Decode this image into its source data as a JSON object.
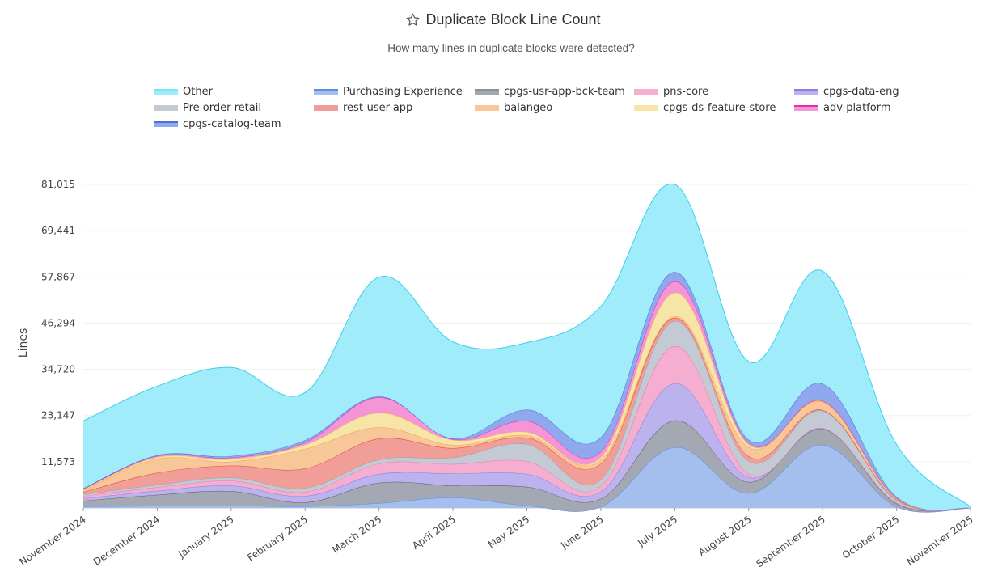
{
  "header": {
    "title": "Duplicate Block Line Count",
    "subtitle": "How many lines in duplicate blocks were detected?",
    "title_icon": "star-icon"
  },
  "chart_data": {
    "type": "area",
    "stacked": true,
    "smoothed": true,
    "title": "Duplicate Block Line Count",
    "subtitle": "How many lines in duplicate blocks were detected?",
    "xlabel": "",
    "ylabel": "Lines",
    "ylim": [
      0,
      81015
    ],
    "yticks": [
      0,
      11573,
      23147,
      34720,
      46294,
      57867,
      69441,
      81015
    ],
    "ytick_labels": [
      "",
      "11,573",
      "23,147",
      "34,720",
      "46,294",
      "57,867",
      "69,441",
      "81,015"
    ],
    "grid": true,
    "legend_position": "top",
    "categories": [
      "November 2024",
      "December 2024",
      "January 2025",
      "February 2025",
      "March 2025",
      "April 2025",
      "May 2025",
      "June 2025",
      "July 2025",
      "August 2025",
      "September 2025",
      "October 2025",
      "November 2025"
    ],
    "series": [
      {
        "name": "Purchasing Experience",
        "color": "#a4bfee",
        "line": "#5b8fe0",
        "values": [
          400,
          500,
          600,
          400,
          1200,
          2600,
          600,
          300,
          15200,
          3700,
          15800,
          300,
          0
        ]
      },
      {
        "name": "cpgs-usr-app-bck-team",
        "color": "#a3a8b3",
        "line": "#5a5f6b",
        "values": [
          1400,
          2800,
          3600,
          1000,
          5100,
          3000,
          4700,
          2000,
          6700,
          2800,
          4000,
          800,
          0
        ]
      },
      {
        "name": "cpgs-data-eng",
        "color": "#bbb2ee",
        "line": "#8a7fe0",
        "values": [
          600,
          1000,
          1400,
          1600,
          2200,
          3000,
          3200,
          1800,
          9300,
          1200,
          200,
          100,
          0
        ]
      },
      {
        "name": "pns-core",
        "color": "#f6aed0",
        "line": "#e878b0",
        "values": [
          600,
          900,
          1200,
          1000,
          2600,
          2400,
          3200,
          1400,
          9300,
          800,
          0,
          100,
          0
        ]
      },
      {
        "name": "Pre order retail",
        "color": "#c4cad4",
        "line": "#9aa2ae",
        "values": [
          400,
          600,
          800,
          1000,
          1000,
          1600,
          4300,
          1600,
          6300,
          3200,
          4300,
          600,
          0
        ]
      },
      {
        "name": "rest-user-app",
        "color": "#f19e98",
        "line": "#e0453a",
        "values": [
          600,
          3000,
          3000,
          4900,
          5300,
          2400,
          1600,
          4000,
          800,
          1200,
          200,
          200,
          0
        ]
      },
      {
        "name": "balangeo",
        "color": "#f7c79a",
        "line": "#f2a04c",
        "values": [
          400,
          3500,
          1000,
          4900,
          2800,
          800,
          600,
          1000,
          400,
          2400,
          2000,
          200,
          0
        ]
      },
      {
        "name": "cpgs-ds-feature-store",
        "color": "#f7e5a8",
        "line": "#f2c94c",
        "values": [
          200,
          400,
          600,
          1000,
          3600,
          1200,
          800,
          600,
          5900,
          600,
          100,
          100,
          0
        ]
      },
      {
        "name": "adv-platform",
        "color": "#f595d6",
        "line": "#e02fb0",
        "values": [
          200,
          300,
          400,
          600,
          3900,
          200,
          2800,
          1400,
          2800,
          400,
          200,
          100,
          0
        ]
      },
      {
        "name": "cpgs-catalog-team",
        "color": "#8fa8ee",
        "line": "#4a6fd8",
        "values": [
          100,
          200,
          400,
          600,
          200,
          200,
          2800,
          3600,
          2400,
          800,
          4300,
          300,
          0
        ]
      },
      {
        "name": "Other",
        "color": "#a0ecfa",
        "line": "#38d0ec",
        "values": [
          16900,
          17300,
          22200,
          11900,
          29900,
          24200,
          16800,
          32800,
          21900,
          19600,
          28200,
          13100,
          300
        ]
      }
    ]
  },
  "legend": [
    {
      "name": "Other",
      "color": "#a0ecfa",
      "line": "#7fe3f5"
    },
    {
      "name": "Purchasing Experience",
      "color": "#a4bfee",
      "line": "#5b8fe0"
    },
    {
      "name": "cpgs-usr-app-bck-team",
      "color": "#a3a8b3",
      "line": "#8a8f9a"
    },
    {
      "name": "pns-core",
      "color": "#f6aed0",
      "line": "#f6aed0"
    },
    {
      "name": "cpgs-data-eng",
      "color": "#bbb2ee",
      "line": "#8a7fe0"
    },
    {
      "name": "Pre order retail",
      "color": "#c4cad4",
      "line": "#c4cad4"
    },
    {
      "name": "rest-user-app",
      "color": "#f19e98",
      "line": "#f19e98"
    },
    {
      "name": "balangeo",
      "color": "#f7c79a",
      "line": "#f7c79a"
    },
    {
      "name": "cpgs-ds-feature-store",
      "color": "#f7e5a8",
      "line": "#f7e5a8"
    },
    {
      "name": "adv-platform",
      "color": "#f595d6",
      "line": "#e02fb0"
    },
    {
      "name": "cpgs-catalog-team",
      "color": "#8fa8ee",
      "line": "#4a6fd8"
    }
  ]
}
